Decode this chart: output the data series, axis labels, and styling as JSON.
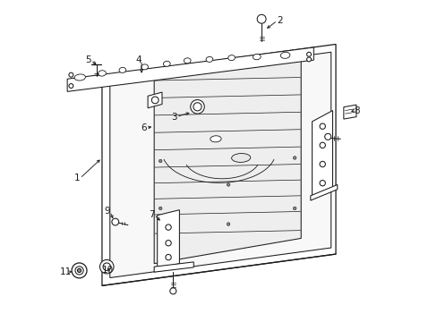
{
  "background_color": "#ffffff",
  "line_color": "#1a1a1a",
  "fig_width": 4.89,
  "fig_height": 3.6,
  "dpi": 100,
  "label_fontsize": 7.5,
  "labels": {
    "2": [
      0.685,
      0.945,
      0.645,
      0.915
    ],
    "5": [
      0.095,
      0.82,
      0.118,
      0.8
    ],
    "4": [
      0.255,
      0.82,
      0.255,
      0.77
    ],
    "6": [
      0.27,
      0.605,
      0.295,
      0.61
    ],
    "3": [
      0.365,
      0.64,
      0.415,
      0.655
    ],
    "8": [
      0.93,
      0.66,
      0.91,
      0.655
    ],
    "1": [
      0.06,
      0.445,
      0.13,
      0.51
    ],
    "9": [
      0.155,
      0.34,
      0.168,
      0.31
    ],
    "7": [
      0.295,
      0.33,
      0.32,
      0.305
    ],
    "10": [
      0.155,
      0.155,
      0.14,
      0.162
    ],
    "11": [
      0.022,
      0.148,
      0.043,
      0.15
    ]
  }
}
